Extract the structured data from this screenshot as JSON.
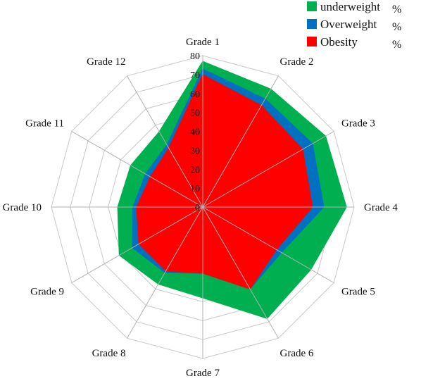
{
  "chart_data": {
    "type": "radar",
    "categories": [
      "Grade 1",
      "Grade 2",
      "Grade 3",
      "Grade 4",
      "Grade 5",
      "Grade 6",
      "Grade 7",
      "Grade 8",
      "Grade 9",
      "Grade 10",
      "Grade 11",
      "Grade 12"
    ],
    "rlim": [
      0,
      80
    ],
    "ticks": [
      "0",
      "10",
      "20",
      "30",
      "40",
      "50",
      "60",
      "70",
      "80"
    ],
    "grid": true,
    "legend_position": "top-right",
    "series": [
      {
        "name": "underweight",
        "unit": "%",
        "color": "#00B050",
        "values": [
          77,
          72,
          75,
          76,
          66,
          68,
          48,
          47,
          51,
          45,
          44,
          46
        ]
      },
      {
        "name": "Overweight",
        "unit": "%",
        "color": "#0070C0",
        "values": [
          73,
          66,
          67,
          64,
          48,
          50,
          35,
          40,
          43,
          37,
          35,
          38
        ]
      },
      {
        "name": "Obesity",
        "unit": "%",
        "color": "#FF0000",
        "values": [
          70,
          62,
          61,
          58,
          45,
          50,
          35,
          39,
          39,
          35,
          32,
          36
        ]
      }
    ]
  }
}
